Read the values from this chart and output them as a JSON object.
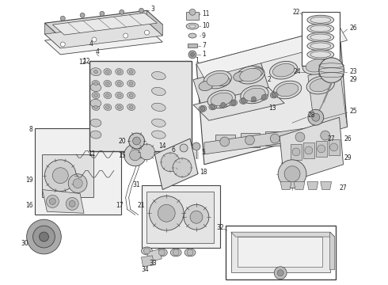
{
  "background_color": "#ffffff",
  "figsize": [
    4.9,
    3.6
  ],
  "dpi": 100,
  "line_color": "#444444",
  "label_color": "#222222"
}
